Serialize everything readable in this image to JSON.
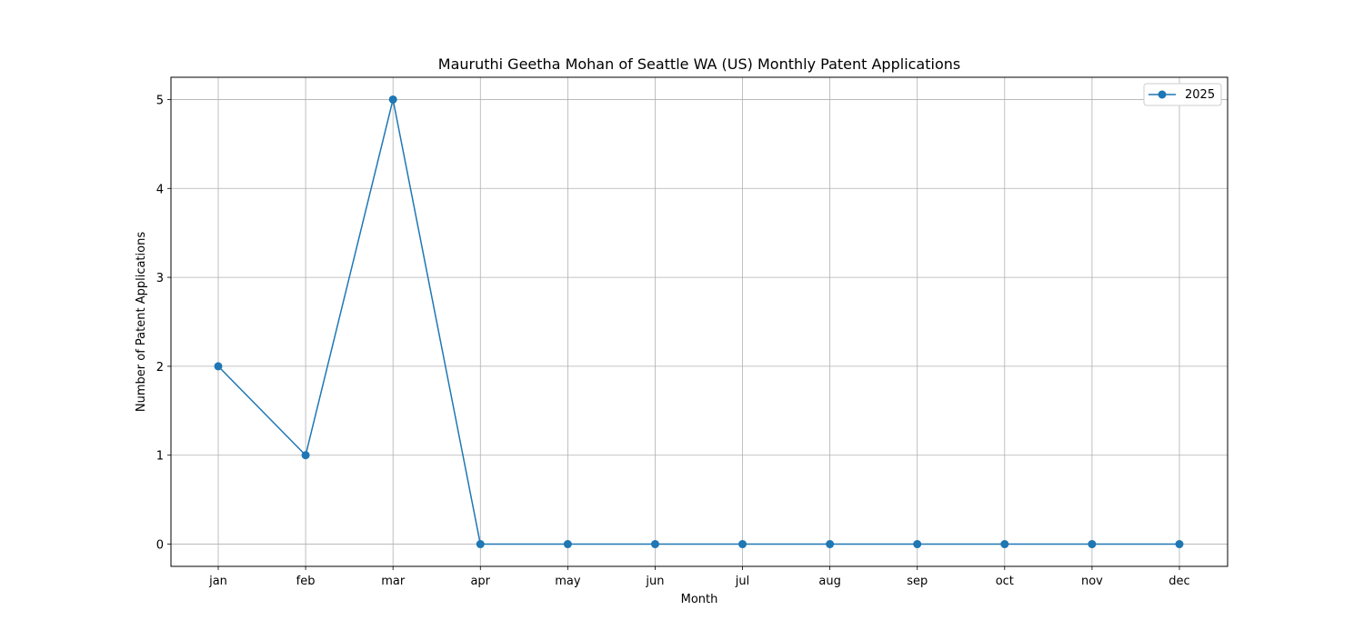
{
  "chart_data": {
    "type": "line",
    "title": "Mauruthi Geetha Mohan of Seattle WA (US) Monthly Patent Applications",
    "xlabel": "Month",
    "ylabel": "Number of Patent Applications",
    "categories": [
      "jan",
      "feb",
      "mar",
      "apr",
      "may",
      "jun",
      "jul",
      "aug",
      "sep",
      "oct",
      "nov",
      "dec"
    ],
    "series": [
      {
        "name": "2025",
        "values": [
          2,
          1,
          5,
          0,
          0,
          0,
          0,
          0,
          0,
          0,
          0,
          0
        ],
        "color": "#1f77b4",
        "marker": "circle"
      }
    ],
    "ylim": [
      -0.25,
      5.25
    ],
    "yticks": [
      0,
      1,
      2,
      3,
      4,
      5
    ],
    "grid": true,
    "legend_position": "top-right"
  }
}
